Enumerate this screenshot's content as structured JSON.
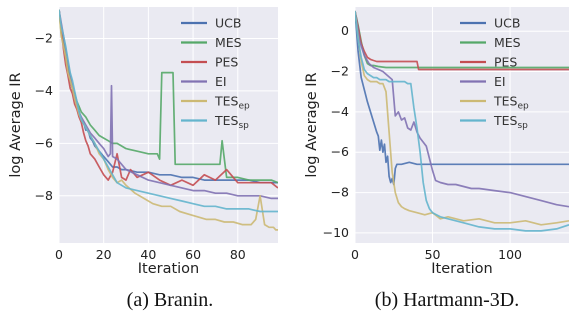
{
  "chart_data": [
    {
      "type": "line",
      "caption": "(a) Branin.",
      "xlabel": "Iteration",
      "ylabel": "log Average IR",
      "xlim": [
        0,
        98
      ],
      "ylim": [
        -9.8,
        -0.8
      ],
      "xticks": [
        0,
        20,
        40,
        60,
        80
      ],
      "yticks": [
        -2,
        -4,
        -6,
        -8
      ],
      "legend_position": "top-right",
      "grid": true,
      "series": [
        {
          "name": "UCB",
          "sub": "",
          "color": "#4c72b0",
          "x": [
            0,
            1,
            2,
            3,
            4,
            5,
            6,
            7,
            8,
            9,
            10,
            11,
            12,
            13,
            14,
            15,
            16,
            18,
            20,
            22,
            24,
            26,
            28,
            30,
            35,
            40,
            45,
            50,
            55,
            60,
            65,
            70,
            75,
            80,
            85,
            90,
            95,
            98
          ],
          "y": [
            -0.9,
            -1.6,
            -2.1,
            -2.6,
            -3.2,
            -3.6,
            -3.9,
            -4.3,
            -4.5,
            -4.8,
            -5.1,
            -5.2,
            -5.5,
            -5.5,
            -5.8,
            -5.9,
            -6.1,
            -6.3,
            -6.5,
            -6.7,
            -6.9,
            -6.9,
            -7.0,
            -7.0,
            -7.1,
            -7.1,
            -7.2,
            -7.2,
            -7.3,
            -7.3,
            -7.4,
            -7.4,
            -7.4,
            -7.4,
            -7.4,
            -7.5,
            -7.5,
            -7.5
          ]
        },
        {
          "name": "MES",
          "sub": "",
          "color": "#55a868",
          "x": [
            0,
            1,
            2,
            3,
            4,
            5,
            6,
            7,
            8,
            9,
            10,
            12,
            14,
            16,
            18,
            20,
            22,
            24,
            26,
            28,
            30,
            35,
            40,
            44,
            45,
            46,
            47,
            48,
            49,
            50,
            51,
            52,
            53,
            55,
            60,
            65,
            70,
            72,
            73,
            75,
            80,
            85,
            90,
            95,
            98
          ],
          "y": [
            -0.9,
            -1.8,
            -2.2,
            -2.6,
            -3.1,
            -3.5,
            -3.9,
            -4.1,
            -4.4,
            -4.6,
            -4.8,
            -5.0,
            -5.3,
            -5.5,
            -5.7,
            -5.8,
            -5.9,
            -6.0,
            -6.0,
            -6.1,
            -6.2,
            -6.3,
            -6.4,
            -6.4,
            -6.6,
            -3.3,
            -3.3,
            -3.3,
            -3.3,
            -3.3,
            -3.3,
            -6.8,
            -6.8,
            -6.8,
            -6.8,
            -6.8,
            -6.8,
            -6.8,
            -5.9,
            -7.3,
            -7.3,
            -7.4,
            -7.4,
            -7.4,
            -7.5
          ]
        },
        {
          "name": "PES",
          "sub": "",
          "color": "#c44e52",
          "x": [
            0,
            1,
            2,
            3,
            4,
            5,
            6,
            7,
            8,
            9,
            10,
            11,
            12,
            13,
            14,
            16,
            18,
            20,
            22,
            24,
            26,
            28,
            30,
            32,
            35,
            40,
            45,
            50,
            55,
            60,
            65,
            70,
            75,
            80,
            85,
            90,
            95,
            98
          ],
          "y": [
            -0.9,
            -1.6,
            -2.4,
            -3.0,
            -3.4,
            -3.9,
            -4.1,
            -4.5,
            -4.7,
            -5.0,
            -5.2,
            -5.6,
            -5.9,
            -6.1,
            -6.4,
            -6.6,
            -6.9,
            -7.2,
            -7.4,
            -7.1,
            -6.4,
            -7.3,
            -7.4,
            -7.0,
            -7.3,
            -7.1,
            -7.4,
            -7.6,
            -7.4,
            -7.6,
            -7.2,
            -7.4,
            -7.0,
            -7.5,
            -7.5,
            -7.5,
            -7.5,
            -7.7
          ]
        },
        {
          "name": "EI",
          "sub": "",
          "color": "#8172b2",
          "x": [
            0,
            1,
            2,
            3,
            4,
            5,
            6,
            7,
            8,
            9,
            10,
            12,
            14,
            16,
            18,
            20,
            22,
            23,
            23.5,
            24,
            26,
            28,
            30,
            35,
            40,
            45,
            50,
            55,
            60,
            65,
            70,
            75,
            80,
            85,
            90,
            95,
            98
          ],
          "y": [
            -0.9,
            -1.4,
            -1.9,
            -2.4,
            -2.9,
            -3.4,
            -3.8,
            -4.2,
            -4.5,
            -4.8,
            -5.0,
            -5.3,
            -5.6,
            -5.8,
            -6.0,
            -6.2,
            -6.5,
            -6.4,
            -3.8,
            -6.5,
            -6.6,
            -6.8,
            -7.0,
            -7.2,
            -7.4,
            -7.5,
            -7.6,
            -7.7,
            -7.8,
            -7.8,
            -7.9,
            -7.9,
            -8.0,
            -8.0,
            -8.0,
            -8.1,
            -8.1
          ]
        },
        {
          "name": "TES",
          "sub": "ep",
          "color": "#ccb974",
          "x": [
            0,
            1,
            2,
            3,
            4,
            5,
            6,
            7,
            8,
            9,
            10,
            12,
            14,
            16,
            18,
            20,
            22,
            24,
            26,
            28,
            30,
            34,
            38,
            42,
            46,
            50,
            54,
            58,
            62,
            66,
            70,
            74,
            78,
            82,
            86,
            88,
            90,
            92,
            94,
            96,
            97,
            98
          ],
          "y": [
            -0.9,
            -1.9,
            -2.3,
            -2.7,
            -3.3,
            -3.6,
            -3.9,
            -4.3,
            -4.6,
            -4.9,
            -5.1,
            -5.4,
            -5.7,
            -6.0,
            -6.4,
            -6.6,
            -7.0,
            -7.3,
            -7.5,
            -7.4,
            -7.6,
            -7.9,
            -8.1,
            -8.3,
            -8.4,
            -8.4,
            -8.6,
            -8.7,
            -8.8,
            -8.9,
            -8.9,
            -9.0,
            -9.0,
            -9.1,
            -9.1,
            -8.9,
            -8.0,
            -9.1,
            -9.2,
            -9.2,
            -9.3,
            -9.3
          ]
        },
        {
          "name": "TES",
          "sub": "sp",
          "color": "#64b5cd",
          "x": [
            0,
            1,
            2,
            3,
            4,
            5,
            6,
            7,
            8,
            9,
            10,
            12,
            14,
            16,
            18,
            20,
            22,
            24,
            26,
            28,
            30,
            35,
            40,
            45,
            50,
            55,
            60,
            65,
            70,
            75,
            80,
            85,
            90,
            95,
            98
          ],
          "y": [
            -0.9,
            -1.5,
            -1.9,
            -2.3,
            -2.8,
            -3.3,
            -3.6,
            -4.0,
            -4.4,
            -4.8,
            -5.1,
            -5.4,
            -5.7,
            -6.0,
            -6.3,
            -6.6,
            -6.9,
            -7.2,
            -7.5,
            -7.6,
            -7.7,
            -7.8,
            -7.9,
            -8.0,
            -8.1,
            -8.2,
            -8.3,
            -8.4,
            -8.4,
            -8.5,
            -8.5,
            -8.5,
            -8.6,
            -8.6,
            -8.6
          ]
        }
      ]
    },
    {
      "type": "line",
      "caption": "(b) Hartmann-3D.",
      "xlabel": "Iteration",
      "ylabel": "log Average IR",
      "xlim": [
        0,
        138
      ],
      "ylim": [
        -10.5,
        1.2
      ],
      "xticks": [
        0,
        50,
        100
      ],
      "yticks": [
        0,
        -2,
        -4,
        -6,
        -8,
        -10
      ],
      "legend_position": "top-right",
      "grid": true,
      "series": [
        {
          "name": "UCB",
          "sub": "",
          "color": "#4c72b0",
          "x": [
            0,
            2,
            4,
            6,
            8,
            10,
            12,
            14,
            15,
            16,
            17,
            18,
            19,
            20,
            21,
            22,
            23,
            24,
            25,
            26,
            27,
            28,
            30,
            35,
            40,
            50,
            60,
            80,
            100,
            120,
            138
          ],
          "y": [
            1.0,
            -1.0,
            -2.3,
            -2.9,
            -3.5,
            -4.0,
            -4.5,
            -5.0,
            -5.2,
            -5.9,
            -5.4,
            -6.0,
            -5.6,
            -6.5,
            -6.2,
            -7.2,
            -7.5,
            -7.3,
            -7.6,
            -6.8,
            -6.6,
            -6.6,
            -6.6,
            -6.5,
            -6.6,
            -6.6,
            -6.6,
            -6.6,
            -6.6,
            -6.6,
            -6.6
          ]
        },
        {
          "name": "MES",
          "sub": "",
          "color": "#55a868",
          "x": [
            0,
            2,
            4,
            6,
            8,
            10,
            12,
            15,
            20,
            30,
            40,
            50,
            60,
            80,
            100,
            120,
            138
          ],
          "y": [
            1.0,
            0.3,
            -0.5,
            -1.2,
            -1.6,
            -1.7,
            -1.7,
            -1.75,
            -1.8,
            -1.8,
            -1.8,
            -1.8,
            -1.8,
            -1.8,
            -1.8,
            -1.8,
            -1.8
          ]
        },
        {
          "name": "PES",
          "sub": "",
          "color": "#c44e52",
          "x": [
            0,
            2,
            4,
            6,
            8,
            10,
            12,
            14,
            16,
            18,
            20,
            30,
            40,
            41,
            50,
            60,
            80,
            100,
            120,
            138
          ],
          "y": [
            1.0,
            0.2,
            -0.6,
            -1.0,
            -1.3,
            -1.4,
            -1.45,
            -1.5,
            -1.5,
            -1.5,
            -1.5,
            -1.5,
            -1.5,
            -1.9,
            -1.9,
            -1.9,
            -1.9,
            -1.9,
            -1.9,
            -1.9
          ]
        },
        {
          "name": "EI",
          "sub": "",
          "color": "#8172b2",
          "x": [
            0,
            3,
            6,
            9,
            12,
            15,
            18,
            21,
            24,
            26,
            28,
            30,
            32,
            34,
            36,
            38,
            40,
            42,
            44,
            46,
            48,
            50,
            52,
            55,
            60,
            65,
            70,
            75,
            80,
            90,
            100,
            110,
            120,
            130,
            138
          ],
          "y": [
            1.0,
            -0.5,
            -1.2,
            -1.6,
            -1.8,
            -1.9,
            -2.0,
            -2.2,
            -2.4,
            -4.2,
            -4.0,
            -4.4,
            -4.3,
            -4.8,
            -4.9,
            -4.5,
            -5.0,
            -5.3,
            -5.5,
            -5.7,
            -6.3,
            -6.9,
            -7.4,
            -7.5,
            -7.6,
            -7.6,
            -7.7,
            -7.8,
            -7.8,
            -7.9,
            -8.0,
            -8.2,
            -8.4,
            -8.6,
            -8.7
          ]
        },
        {
          "name": "TES",
          "sub": "ep",
          "color": "#ccb974",
          "x": [
            0,
            2,
            4,
            6,
            8,
            10,
            12,
            14,
            16,
            18,
            20,
            22,
            24,
            26,
            28,
            30,
            32,
            35,
            40,
            45,
            50,
            55,
            60,
            70,
            80,
            90,
            100,
            110,
            120,
            130,
            138
          ],
          "y": [
            1.0,
            -0.3,
            -1.5,
            -2.2,
            -2.4,
            -2.5,
            -2.5,
            -2.5,
            -2.6,
            -2.6,
            -3.0,
            -5.0,
            -7.0,
            -8.0,
            -8.5,
            -8.7,
            -8.8,
            -8.9,
            -9.0,
            -9.1,
            -9.0,
            -9.3,
            -9.2,
            -9.4,
            -9.3,
            -9.5,
            -9.5,
            -9.4,
            -9.6,
            -9.5,
            -9.4
          ]
        },
        {
          "name": "TES",
          "sub": "sp",
          "color": "#64b5cd",
          "x": [
            0,
            2,
            4,
            6,
            8,
            10,
            12,
            14,
            16,
            18,
            20,
            22,
            24,
            26,
            28,
            30,
            32,
            34,
            36,
            38,
            40,
            42,
            44,
            46,
            48,
            50,
            55,
            60,
            70,
            80,
            90,
            100,
            110,
            120,
            130,
            138
          ],
          "y": [
            1.0,
            -0.4,
            -1.3,
            -1.9,
            -2.1,
            -2.2,
            -2.3,
            -2.3,
            -2.4,
            -2.4,
            -2.4,
            -2.5,
            -2.5,
            -2.5,
            -2.5,
            -2.5,
            -2.5,
            -2.6,
            -2.6,
            -3.8,
            -4.8,
            -6.0,
            -7.5,
            -8.4,
            -8.8,
            -9.0,
            -9.2,
            -9.3,
            -9.5,
            -9.7,
            -9.8,
            -9.8,
            -9.9,
            -9.9,
            -9.8,
            -9.6
          ]
        }
      ]
    }
  ]
}
